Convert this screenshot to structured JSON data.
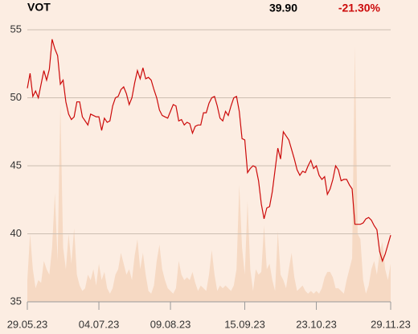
{
  "chart_data": {
    "type": "line",
    "title": "VOT",
    "last_value": "39.90",
    "change": "-21.30%",
    "categories": [
      "29.05.23",
      null,
      null,
      null,
      null,
      null,
      null,
      null,
      null,
      null,
      null,
      null,
      null,
      null,
      null,
      null,
      null,
      null,
      null,
      null,
      null,
      null,
      null,
      null,
      null,
      null,
      "04.07.23",
      null,
      null,
      null,
      null,
      null,
      null,
      null,
      null,
      null,
      null,
      null,
      null,
      null,
      null,
      null,
      null,
      null,
      null,
      null,
      null,
      null,
      null,
      null,
      null,
      null,
      "09.08.23",
      null,
      null,
      null,
      null,
      null,
      null,
      null,
      null,
      null,
      null,
      null,
      null,
      null,
      null,
      null,
      null,
      null,
      null,
      null,
      null,
      null,
      null,
      null,
      null,
      null,
      null,
      "15.09.23",
      null,
      null,
      null,
      null,
      null,
      null,
      null,
      null,
      null,
      null,
      null,
      null,
      null,
      null,
      null,
      null,
      null,
      null,
      null,
      null,
      null,
      null,
      null,
      null,
      null,
      "23.10.23",
      null,
      null,
      null,
      null,
      null,
      null,
      null,
      null,
      null,
      null,
      null,
      null,
      null,
      null,
      null,
      null,
      null,
      null,
      null,
      null,
      null,
      null,
      null,
      null,
      null,
      null,
      "29.11.23"
    ],
    "series": [
      {
        "color": "#cc0a0a",
        "values": [
          50.7,
          51.8,
          50.1,
          50.5,
          50.0,
          51.0,
          52.0,
          51.3,
          52.1,
          54.3,
          53.6,
          53.1,
          51.0,
          51.3,
          49.7,
          48.8,
          48.4,
          48.6,
          49.7,
          49.7,
          48.6,
          48.3,
          48.0,
          48.8,
          48.7,
          48.6,
          48.6,
          47.6,
          48.5,
          48.2,
          48.3,
          49.4,
          50.0,
          50.1,
          50.6,
          50.8,
          50.3,
          49.5,
          50.0,
          51.1,
          52.0,
          51.4,
          52.2,
          51.4,
          51.5,
          51.3,
          50.6,
          50.0,
          49.1,
          48.7,
          48.6,
          48.5,
          49.0,
          49.5,
          49.4,
          48.3,
          48.4,
          48.0,
          48.2,
          48.1,
          47.4,
          47.9,
          48.0,
          48.0,
          48.9,
          48.9,
          49.6,
          50.0,
          50.1,
          49.4,
          48.5,
          48.3,
          49.0,
          48.7,
          49.4,
          50.0,
          50.1,
          49.0,
          47.0,
          46.9,
          44.5,
          44.8,
          45.0,
          44.9,
          43.9,
          42.2,
          41.1,
          41.9,
          42.0,
          43.1,
          44.7,
          46.3,
          45.5,
          47.5,
          47.2,
          46.9,
          46.2,
          45.5,
          44.7,
          44.3,
          44.6,
          44.5,
          45.0,
          45.4,
          44.8,
          45.0,
          44.3,
          44.0,
          44.2,
          42.9,
          43.3,
          44.0,
          45.0,
          44.7,
          43.9,
          44.0,
          44.0,
          43.6,
          43.3,
          40.7,
          40.7,
          40.7,
          40.8,
          41.1,
          41.2,
          41.0,
          40.6,
          40.3,
          38.7,
          38.0,
          38.5,
          39.2,
          39.9
        ]
      },
      {
        "color": "#f6d9c3",
        "axis": "y2",
        "values": [
          8,
          25,
          12,
          5,
          8,
          7,
          15,
          12,
          10,
          20,
          40,
          15,
          73,
          20,
          12,
          25,
          14,
          27,
          10,
          6,
          4,
          5,
          10,
          8,
          12,
          6,
          14,
          8,
          11,
          5,
          3,
          5,
          10,
          12,
          18,
          14,
          10,
          12,
          8,
          17,
          23,
          12,
          18,
          10,
          4,
          3,
          6,
          15,
          21,
          12,
          8,
          5,
          4,
          3,
          5,
          15,
          10,
          8,
          9,
          8,
          11,
          7,
          4,
          6,
          5,
          4,
          10,
          19,
          10,
          4,
          6,
          5,
          6,
          5,
          4,
          6,
          12,
          43,
          20,
          10,
          37,
          12,
          4,
          12,
          10,
          11,
          28,
          12,
          14,
          8,
          4,
          26,
          10,
          8,
          5,
          12,
          18,
          9,
          4,
          5,
          6,
          4,
          3,
          4,
          3,
          4,
          3,
          5,
          9,
          11,
          11,
          9,
          5,
          5,
          4,
          3,
          8,
          12,
          16,
          94,
          25,
          23,
          8,
          3,
          6,
          12,
          15,
          10,
          18,
          22,
          12,
          8,
          14
        ]
      }
    ],
    "ylim": [
      35,
      55
    ],
    "yticks": [
      35,
      40,
      45,
      50,
      55
    ],
    "y2lim": [
      0,
      100
    ],
    "grid": true
  }
}
